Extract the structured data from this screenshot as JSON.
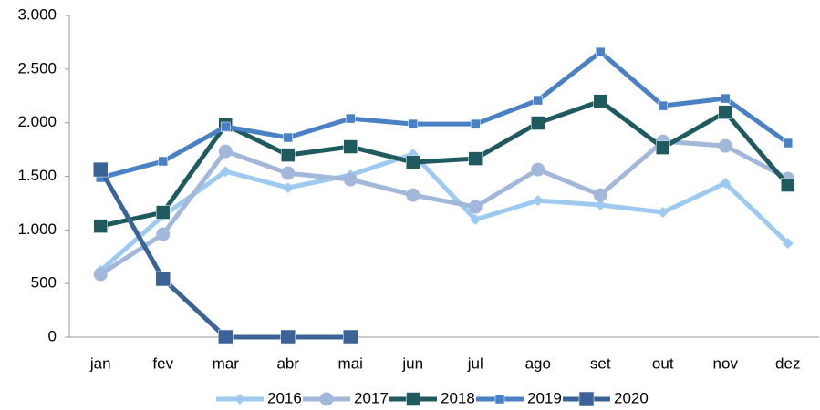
{
  "chart_data": {
    "type": "line",
    "categories": [
      "jan",
      "fev",
      "mar",
      "abr",
      "mai",
      "jun",
      "jul",
      "ago",
      "set",
      "out",
      "nov",
      "dez"
    ],
    "ylim": [
      0,
      3000
    ],
    "yticks": [
      0,
      500,
      {
        "value": 1000,
        "label": "1.000"
      },
      {
        "value": 1500,
        "label": "1.500"
      },
      {
        "value": 2000,
        "label": "2.000"
      },
      {
        "value": 2500,
        "label": "2.500"
      },
      {
        "value": 3000,
        "label": "3.000"
      }
    ],
    "grid": false,
    "legend": "bottom",
    "series": [
      {
        "name": "2016",
        "color": "#9ecaf2",
        "marker": "diamond",
        "values": [
          620,
          1130,
          1545,
          1393,
          1512,
          1707,
          1096,
          1274,
          1232,
          1164,
          1436,
          875
        ]
      },
      {
        "name": "2017",
        "color": "#a3b7da",
        "marker": "circle",
        "values": [
          586,
          960,
          1733,
          1529,
          1470,
          1325,
          1215,
          1563,
          1325,
          1826,
          1784,
          1478
        ]
      },
      {
        "name": "2018",
        "color": "#1f5a5e",
        "marker": "square",
        "values": [
          1036,
          1164,
          1979,
          1699,
          1776,
          1631,
          1665,
          1997,
          2200,
          1767,
          2098,
          1419
        ]
      },
      {
        "name": "2019",
        "color": "#4a80c4",
        "marker": "square-small",
        "values": [
          1487,
          1640,
          1963,
          1861,
          2039,
          1988,
          1988,
          2209,
          2659,
          2158,
          2226,
          1810
        ]
      },
      {
        "name": "2020",
        "color": "#3b6398",
        "marker": "square-large",
        "values": [
          1563,
          544,
          0,
          0,
          0,
          null,
          null,
          null,
          null,
          null,
          null,
          null
        ]
      }
    ]
  }
}
